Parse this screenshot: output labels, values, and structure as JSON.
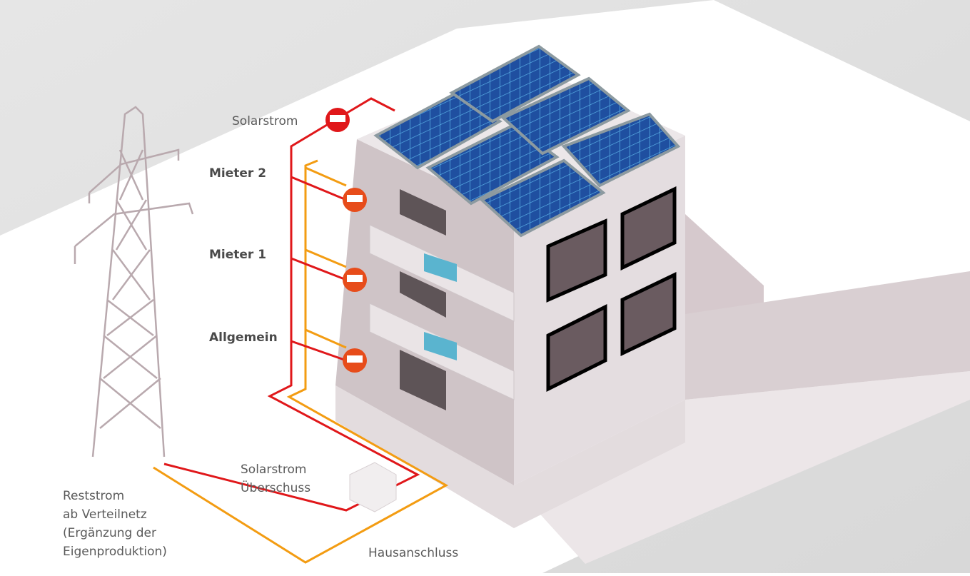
{
  "labels": {
    "solar_power": "Solarstrom",
    "tenant_2": "Mieter 2",
    "tenant_1": "Mieter 1",
    "common": "Allgemein"
  },
  "surplus": [
    "Solarstrom",
    "Überschuss"
  ],
  "grid_supply": [
    "Reststrom",
    "ab Verteilnetz",
    "(Ergänzung der",
    "Eigenproduktion)"
  ],
  "house_connection": "Hausanschluss"
}
